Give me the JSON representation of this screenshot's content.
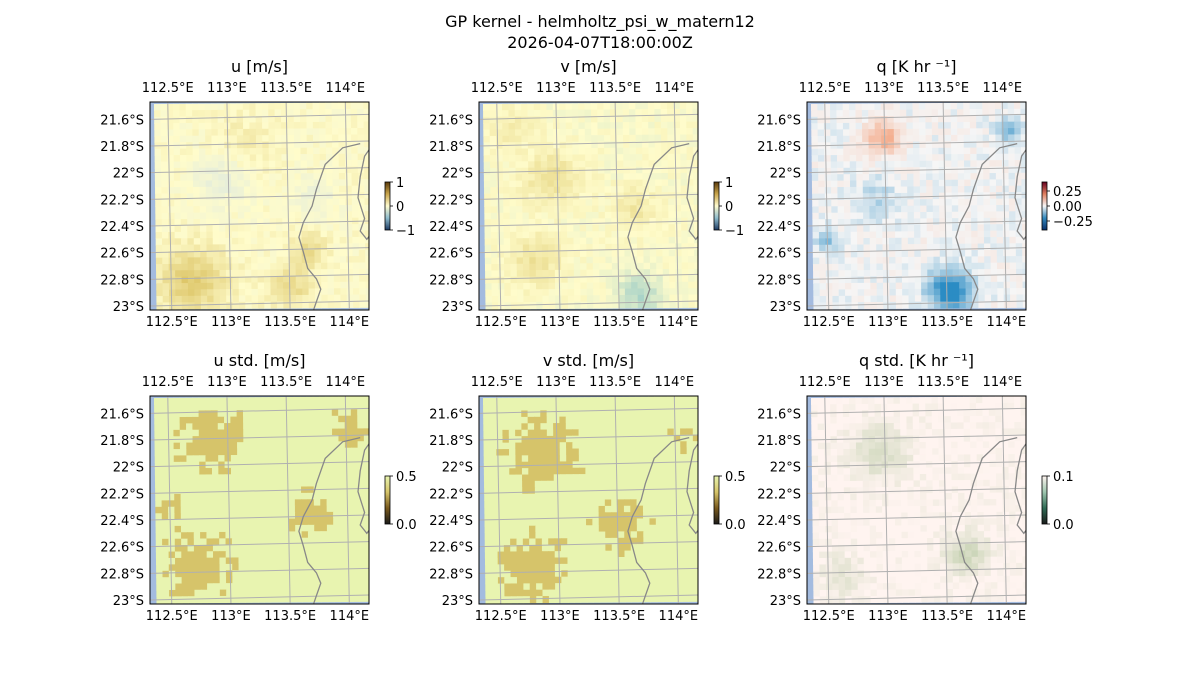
{
  "figure": {
    "title_line1": "GP kernel - helmholtz_psi_w_matern12",
    "title_line2": "2026-04-07T18:00:00Z"
  },
  "map_extent": {
    "lon_min": 112.35,
    "lon_max": 114.2,
    "lat_min": -23.03,
    "lat_max": -21.47
  },
  "lon_ticks": [
    {
      "value": 112.5,
      "label": "112.5°E"
    },
    {
      "value": 113.0,
      "label": "113°E"
    },
    {
      "value": 113.5,
      "label": "113.5°E"
    },
    {
      "value": 114.0,
      "label": "114°E"
    }
  ],
  "lat_ticks": [
    {
      "value": -21.6,
      "label": "21.6°S"
    },
    {
      "value": -21.8,
      "label": "21.8°S"
    },
    {
      "value": -22.0,
      "label": "22°S"
    },
    {
      "value": -22.2,
      "label": "22.2°S"
    },
    {
      "value": -22.4,
      "label": "22.4°S"
    },
    {
      "value": -22.6,
      "label": "22.6°S"
    },
    {
      "value": -22.8,
      "label": "22.8°S"
    },
    {
      "value": -23.0,
      "label": "23°S"
    }
  ],
  "colors": {
    "ocean": "#a3bbdf",
    "coastline": "#888888",
    "gridline": "#b0b0b0"
  },
  "panels": [
    {
      "id": "u",
      "title": "u [m/s]",
      "field": "u",
      "base_color": "#fffccb",
      "hi_color": "#dec76a",
      "lo_color": "#d4e4e6",
      "colorbar": {
        "min": -1,
        "max": 1,
        "ticks": [
          {
            "value": 1,
            "label": "1"
          },
          {
            "value": 0,
            "label": "0"
          },
          {
            "value": -1,
            "label": "−1"
          }
        ],
        "colors": [
          "#1d3a63",
          "#8fbccd",
          "#fffcd0",
          "#c9a54c",
          "#5a3a0b"
        ]
      }
    },
    {
      "id": "v",
      "title": "v [m/s]",
      "field": "v",
      "base_color": "#fffccb",
      "hi_color": "#e4d27c",
      "lo_color": "#a9d3c8",
      "colorbar": {
        "min": -1,
        "max": 1,
        "ticks": [
          {
            "value": 1,
            "label": "1"
          },
          {
            "value": 0,
            "label": "0"
          },
          {
            "value": -1,
            "label": "−1"
          }
        ],
        "colors": [
          "#1d3a63",
          "#8fbccd",
          "#fffcd0",
          "#c9a54c",
          "#5a3a0b"
        ]
      }
    },
    {
      "id": "q",
      "title": "q [K hr ⁻¹]",
      "field": "q",
      "base_color": "#f6f6f6",
      "hi_color": "#f4a582",
      "lo_color": "#2b8cc4",
      "colorbar": {
        "min": -0.4,
        "max": 0.4,
        "ticks": [
          {
            "value": 0.25,
            "label": "0.25"
          },
          {
            "value": 0.0,
            "label": "0.00"
          },
          {
            "value": -0.25,
            "label": "−0.25"
          }
        ],
        "colors": [
          "#08306b",
          "#3288bd",
          "#f7f7f7",
          "#e08060",
          "#67001f"
        ]
      }
    },
    {
      "id": "ustd",
      "title": "u std. [m/s]",
      "field": "ustd",
      "base_color": "#e8f4b0",
      "hi_color": "#d6c46a",
      "lo_color": "#e8f4b0",
      "colorbar": {
        "min": 0,
        "max": 0.5,
        "ticks": [
          {
            "value": 0.5,
            "label": "0.5"
          },
          {
            "value": 0.0,
            "label": "0.0"
          }
        ],
        "colors": [
          "#1a1a1a",
          "#7a5a1e",
          "#d6c46a",
          "#e8f4b0"
        ]
      }
    },
    {
      "id": "vstd",
      "title": "v std. [m/s]",
      "field": "vstd",
      "base_color": "#e8f4b0",
      "hi_color": "#d6c46a",
      "lo_color": "#e8f4b0",
      "colorbar": {
        "min": 0,
        "max": 0.5,
        "ticks": [
          {
            "value": 0.5,
            "label": "0.5"
          },
          {
            "value": 0.0,
            "label": "0.0"
          }
        ],
        "colors": [
          "#1a1a1a",
          "#7a5a1e",
          "#d6c46a",
          "#e8f4b0"
        ]
      }
    },
    {
      "id": "qstd",
      "title": "q std. [K hr ⁻¹]",
      "field": "qstd",
      "base_color": "#fff4f0",
      "hi_color": "#c9d4b6",
      "lo_color": "#fff4f0",
      "colorbar": {
        "min": 0,
        "max": 0.1,
        "ticks": [
          {
            "value": 0.1,
            "label": "0.1"
          },
          {
            "value": 0.0,
            "label": "0.0"
          }
        ],
        "colors": [
          "#1a1a1a",
          "#2f6b55",
          "#9fc7b0",
          "#fff4f0"
        ]
      }
    }
  ]
}
